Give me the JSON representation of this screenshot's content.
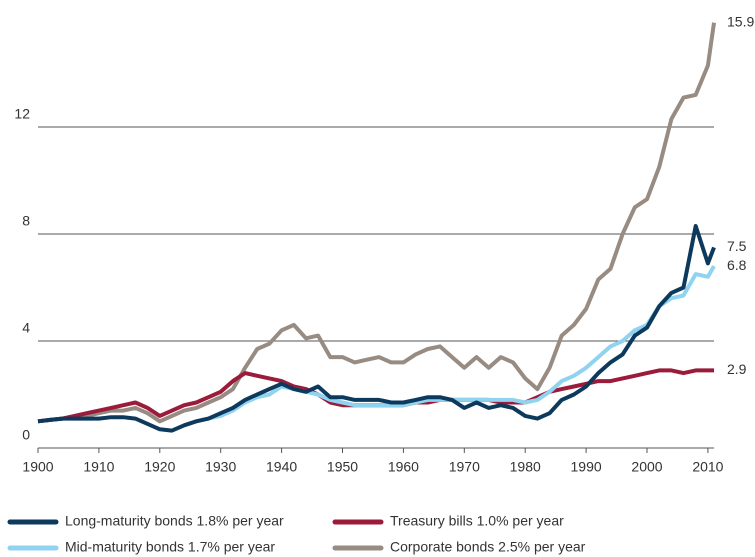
{
  "chart_data": {
    "type": "line",
    "x": [
      1900,
      1902,
      1904,
      1906,
      1908,
      1910,
      1912,
      1914,
      1916,
      1918,
      1920,
      1922,
      1924,
      1926,
      1928,
      1930,
      1932,
      1934,
      1936,
      1938,
      1940,
      1942,
      1944,
      1946,
      1948,
      1950,
      1952,
      1954,
      1956,
      1958,
      1960,
      1962,
      1964,
      1966,
      1968,
      1970,
      1972,
      1974,
      1976,
      1978,
      1980,
      1982,
      1984,
      1986,
      1988,
      1990,
      1992,
      1994,
      1996,
      1998,
      2000,
      2002,
      2004,
      2006,
      2008,
      2010,
      2011
    ],
    "series": [
      {
        "name": "Long-maturity bonds 1.8% per year",
        "color": "#0d3a5c",
        "values": [
          1.0,
          1.05,
          1.1,
          1.1,
          1.1,
          1.1,
          1.15,
          1.15,
          1.1,
          0.9,
          0.7,
          0.65,
          0.85,
          1.0,
          1.1,
          1.3,
          1.5,
          1.8,
          2.0,
          2.2,
          2.4,
          2.2,
          2.1,
          2.3,
          1.9,
          1.9,
          1.8,
          1.8,
          1.8,
          1.7,
          1.7,
          1.8,
          1.9,
          1.9,
          1.8,
          1.5,
          1.7,
          1.5,
          1.6,
          1.5,
          1.2,
          1.1,
          1.3,
          1.8,
          2.0,
          2.3,
          2.8,
          3.2,
          3.5,
          4.2,
          4.5,
          5.3,
          5.8,
          6.0,
          8.3,
          6.9,
          7.5
        ]
      },
      {
        "name": "Mid-maturity bonds 1.7% per year",
        "color": "#8fd3f0",
        "values": [
          null,
          null,
          null,
          null,
          null,
          null,
          null,
          null,
          null,
          null,
          null,
          null,
          null,
          1.0,
          1.1,
          1.2,
          1.4,
          1.7,
          1.9,
          2.0,
          2.3,
          2.2,
          2.1,
          2.0,
          1.8,
          1.7,
          1.6,
          1.6,
          1.6,
          1.6,
          1.6,
          1.7,
          1.8,
          1.8,
          1.8,
          1.8,
          1.8,
          1.8,
          1.8,
          1.8,
          1.7,
          1.8,
          2.1,
          2.5,
          2.7,
          3.0,
          3.4,
          3.8,
          4.0,
          4.4,
          4.6,
          5.3,
          5.6,
          5.7,
          6.5,
          6.4,
          6.8
        ]
      },
      {
        "name": "Treasury bills 1.0% per year",
        "color": "#9b1b3a",
        "values": [
          1.0,
          1.05,
          1.1,
          1.2,
          1.3,
          1.4,
          1.5,
          1.6,
          1.7,
          1.5,
          1.2,
          1.4,
          1.6,
          1.7,
          1.9,
          2.1,
          2.5,
          2.8,
          2.7,
          2.6,
          2.5,
          2.3,
          2.2,
          2.0,
          1.7,
          1.6,
          1.6,
          1.6,
          1.6,
          1.6,
          1.6,
          1.7,
          1.7,
          1.8,
          1.8,
          1.8,
          1.8,
          1.8,
          1.7,
          1.7,
          1.7,
          1.9,
          2.1,
          2.2,
          2.3,
          2.4,
          2.5,
          2.5,
          2.6,
          2.7,
          2.8,
          2.9,
          2.9,
          2.8,
          2.9,
          2.9,
          2.9
        ]
      },
      {
        "name": "Corporate bonds 2.5% per year",
        "color": "#978b82",
        "values": [
          1.0,
          1.05,
          1.1,
          1.15,
          1.2,
          1.3,
          1.4,
          1.4,
          1.5,
          1.3,
          1.0,
          1.2,
          1.4,
          1.5,
          1.7,
          1.9,
          2.2,
          3.0,
          3.7,
          3.9,
          4.4,
          4.6,
          4.1,
          4.2,
          3.4,
          3.4,
          3.2,
          3.3,
          3.4,
          3.2,
          3.2,
          3.5,
          3.7,
          3.8,
          3.4,
          3.0,
          3.4,
          3.0,
          3.4,
          3.2,
          2.6,
          2.2,
          3.0,
          4.2,
          4.6,
          5.2,
          6.3,
          6.7,
          8.0,
          9.0,
          9.3,
          10.5,
          12.3,
          13.1,
          13.2,
          14.3,
          15.9
        ]
      }
    ],
    "xlim": [
      1900,
      2011
    ],
    "xticks": [
      1900,
      1910,
      1920,
      1930,
      1940,
      1950,
      1960,
      1970,
      1980,
      1990,
      2000,
      2010
    ],
    "ylim": [
      0,
      16
    ],
    "yticks": [
      0,
      4,
      8,
      12
    ],
    "grid": true
  }
}
